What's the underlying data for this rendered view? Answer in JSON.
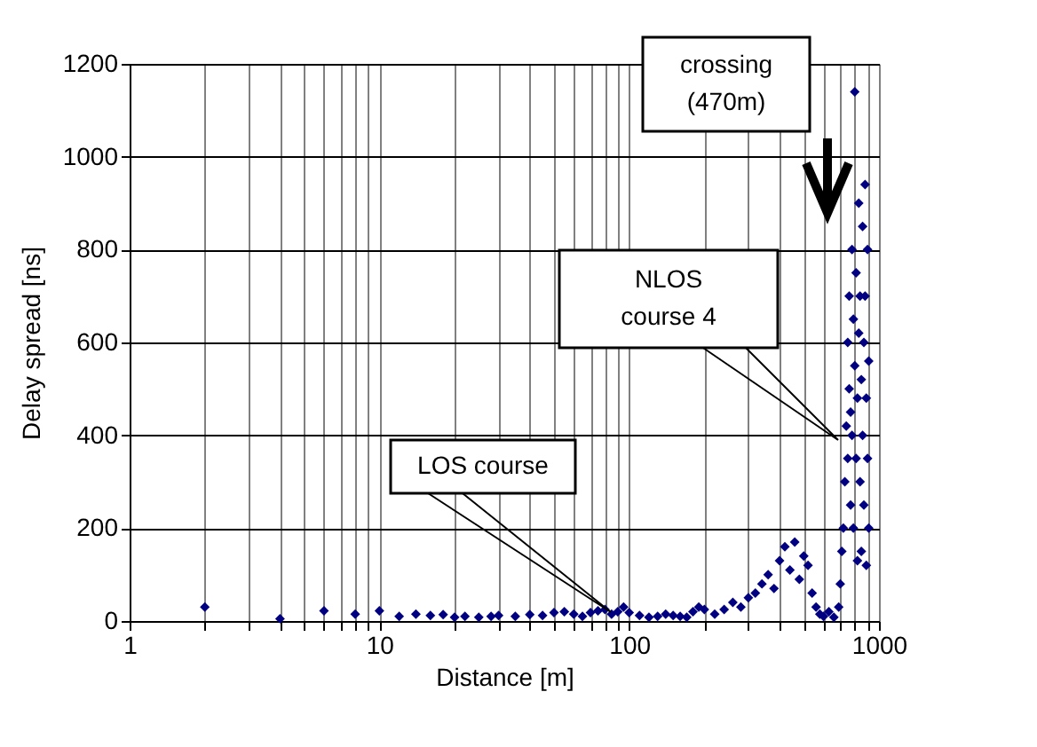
{
  "chart_data": {
    "type": "scatter",
    "xlabel": "Distance  [m]",
    "ylabel": "Delay spread [ns]",
    "log": "x",
    "grid": true,
    "marker": "diamond",
    "xlim": [
      1,
      1000
    ],
    "ylim": [
      0,
      1200
    ],
    "yticks": [
      0,
      200,
      400,
      600,
      800,
      1000,
      1200
    ],
    "xticks": [
      1,
      {
        "value": 2,
        "label": null
      },
      {
        "value": 3,
        "label": null
      },
      {
        "value": 4,
        "label": null
      },
      {
        "value": 5,
        "label": null
      },
      {
        "value": 6,
        "label": null
      },
      {
        "value": 7,
        "label": null
      },
      {
        "value": 8,
        "label": null
      },
      {
        "value": 9,
        "label": null
      },
      10,
      {
        "value": 20,
        "label": null
      },
      {
        "value": 30,
        "label": null
      },
      {
        "value": 40,
        "label": null
      },
      {
        "value": 50,
        "label": null
      },
      {
        "value": 60,
        "label": null
      },
      {
        "value": 70,
        "label": null
      },
      {
        "value": 80,
        "label": null
      },
      {
        "value": 90,
        "label": null
      },
      100,
      {
        "value": 200,
        "label": null
      },
      {
        "value": 300,
        "label": null
      },
      {
        "value": 400,
        "label": null
      },
      {
        "value": 500,
        "label": null
      },
      {
        "value": 600,
        "label": null
      },
      {
        "value": 700,
        "label": null
      },
      {
        "value": 800,
        "label": null
      },
      {
        "value": 900,
        "label": null
      },
      1000
    ],
    "annotations": [
      "crossing\n(470m)",
      "NLOS\ncourse 4",
      "LOS course"
    ],
    "series": [
      {
        "color": "#000080",
        "x": [
          2,
          4,
          6,
          8,
          10,
          12,
          14,
          16,
          18,
          20,
          22,
          25,
          28,
          30,
          35,
          40,
          45,
          50,
          55,
          60,
          65,
          70,
          75,
          80,
          85,
          90,
          95,
          100,
          110,
          120,
          130,
          140,
          150,
          160,
          170,
          180,
          190,
          200,
          220,
          240,
          260,
          280,
          300,
          320,
          340,
          360,
          380,
          400,
          420,
          440,
          460,
          480,
          500,
          520,
          540,
          560,
          580,
          600,
          630,
          660,
          690,
          700,
          710,
          720,
          730,
          740,
          750,
          750,
          760,
          760,
          770,
          770,
          780,
          780,
          790,
          790,
          800,
          800,
          810,
          810,
          820,
          820,
          830,
          830,
          840,
          840,
          850,
          850,
          860,
          860,
          870,
          870,
          880,
          880,
          890,
          890,
          900,
          900,
          910,
          910
        ],
        "values": [
          30,
          5,
          22,
          15,
          22,
          10,
          15,
          12,
          14,
          8,
          10,
          8,
          10,
          12,
          10,
          14,
          12,
          18,
          20,
          15,
          10,
          18,
          22,
          25,
          15,
          20,
          30,
          18,
          12,
          8,
          10,
          15,
          12,
          10,
          8,
          20,
          30,
          25,
          15,
          25,
          40,
          30,
          50,
          60,
          80,
          100,
          70,
          130,
          160,
          110,
          170,
          90,
          140,
          120,
          60,
          30,
          15,
          10,
          20,
          8,
          30,
          80,
          150,
          200,
          300,
          420,
          350,
          600,
          500,
          700,
          250,
          450,
          800,
          400,
          650,
          200,
          550,
          1140,
          750,
          350,
          480,
          130,
          900,
          620,
          300,
          700,
          520,
          150,
          850,
          400,
          600,
          250,
          940,
          700,
          480,
          120,
          800,
          350,
          560,
          200
        ]
      }
    ]
  }
}
